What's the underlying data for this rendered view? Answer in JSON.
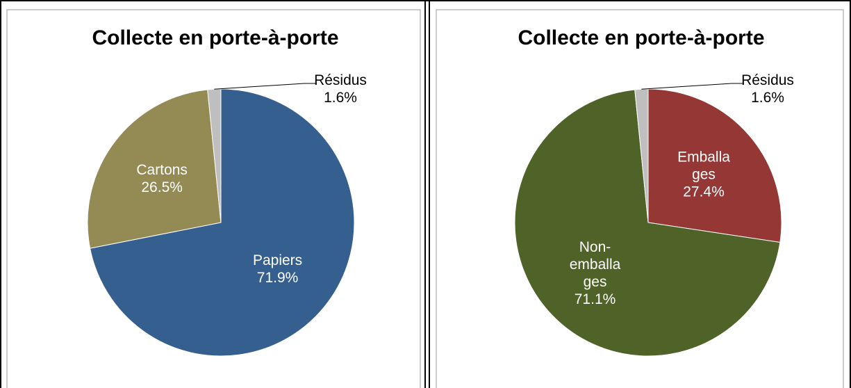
{
  "chart_data": [
    {
      "type": "pie",
      "title": "Collecte en porte-à-porte",
      "categories": [
        "Papiers",
        "Cartons",
        "Résidus"
      ],
      "values": [
        71.9,
        26.5,
        1.6
      ],
      "value_labels": [
        "71.9%",
        "26.5%",
        "1.6%"
      ],
      "colors": [
        "#355f8f",
        "#948a54",
        "#bfbfbf"
      ]
    },
    {
      "type": "pie",
      "title": "Collecte en porte-à-porte",
      "categories": [
        "Emballa\nges",
        "Non-\nemballa\nges",
        "Résidus"
      ],
      "values": [
        27.4,
        71.1,
        1.6
      ],
      "value_labels": [
        "27.4%",
        "71.1%",
        "1.6%"
      ],
      "colors": [
        "#953735",
        "#4f6228",
        "#bfbfbf"
      ]
    }
  ]
}
